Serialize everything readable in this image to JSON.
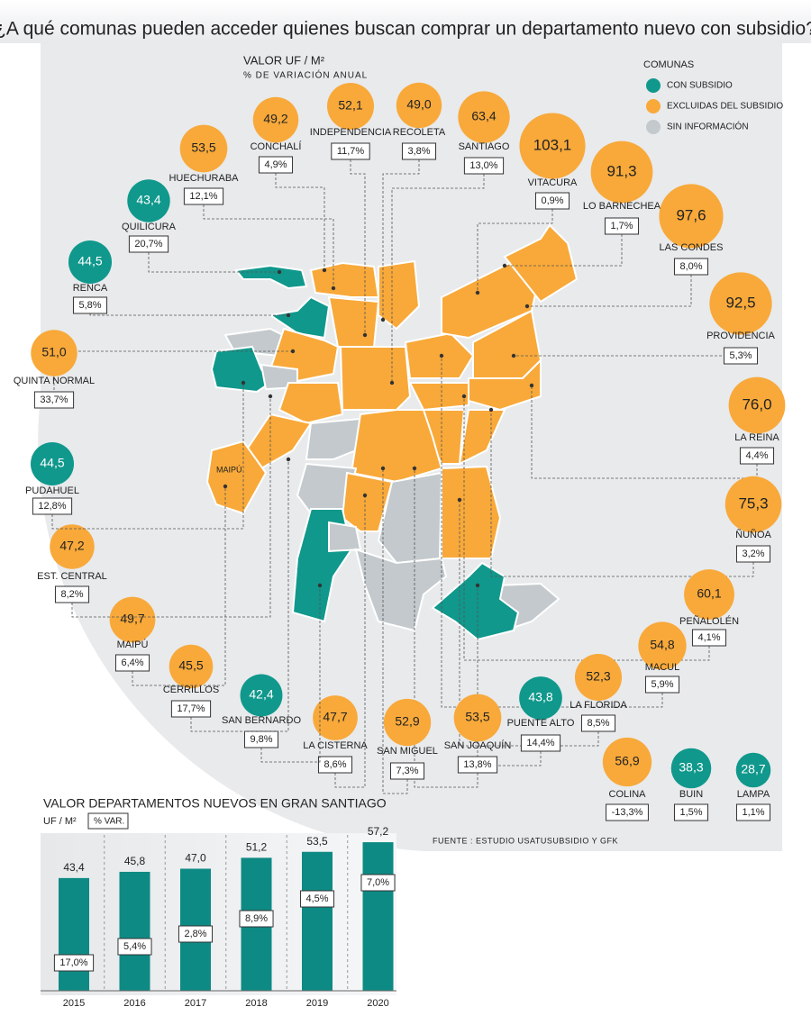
{
  "title": "¿A qué comunas pueden acceder quienes buscan comprar un departamento nuevo con subsidio?",
  "map": {
    "value_heading": "VALOR UF / M²",
    "variation_heading": "% DE VARIACIÓN ANUAL",
    "district_label": "MAIPÚ",
    "legend": {
      "title": "COMUNAS",
      "items": [
        {
          "name": "CON SUBSIDIO",
          "color": "#10988c"
        },
        {
          "name": "EXCLUIDAS DEL SUBSIDIO",
          "color": "#f8a93a"
        },
        {
          "name": "SIN INFORMACIÓN",
          "color": "#c3c9cd"
        }
      ]
    },
    "communes": [
      {
        "name": "CONCHALÍ",
        "value": 49.2,
        "value_label": "49,2",
        "variation": "4,9%",
        "group": 1
      },
      {
        "name": "INDEPENDENCIA",
        "value": 52.1,
        "value_label": "52,1",
        "variation": "11,7%",
        "group": 1
      },
      {
        "name": "RECOLETA",
        "value": 49.0,
        "value_label": "49,0",
        "variation": "3,8%",
        "group": 1
      },
      {
        "name": "SANTIAGO",
        "value": 63.4,
        "value_label": "63,4",
        "variation": "13,0%",
        "group": 1
      },
      {
        "name": "VITACURA",
        "value": 103.1,
        "value_label": "103,1",
        "variation": "0,9%",
        "group": 1
      },
      {
        "name": "LO BARNECHEA",
        "value": 91.3,
        "value_label": "91,3",
        "variation": "1,7%",
        "group": 1
      },
      {
        "name": "LAS CONDES",
        "value": 97.6,
        "value_label": "97,6",
        "variation": "8,0%",
        "group": 1
      },
      {
        "name": "PROVIDENCIA",
        "value": 92.5,
        "value_label": "92,5",
        "variation": "5,3%",
        "group": 1
      },
      {
        "name": "LA REINA",
        "value": 76.0,
        "value_label": "76,0",
        "variation": "4,4%",
        "group": 1
      },
      {
        "name": "ÑUÑOA",
        "value": 75.3,
        "value_label": "75,3",
        "variation": "3,2%",
        "group": 1
      },
      {
        "name": "PEÑALOLÉN",
        "value": 60.1,
        "value_label": "60,1",
        "variation": "4,1%",
        "group": 1
      },
      {
        "name": "MACUL",
        "value": 54.8,
        "value_label": "54,8",
        "variation": "5,9%",
        "group": 1
      },
      {
        "name": "LA FLORIDA",
        "value": 52.3,
        "value_label": "52,3",
        "variation": "8,5%",
        "group": 1
      },
      {
        "name": "PUENTE ALTO",
        "value": 43.8,
        "value_label": "43,8",
        "variation": "14,4%",
        "group": 0
      },
      {
        "name": "SAN JOAQUÍN",
        "value": 53.5,
        "value_label": "53,5",
        "variation": "13,8%",
        "group": 1
      },
      {
        "name": "SAN MIGUEL",
        "value": 52.9,
        "value_label": "52,9",
        "variation": "7,3%",
        "group": 1
      },
      {
        "name": "LA CISTERNA",
        "value": 47.7,
        "value_label": "47,7",
        "variation": "8,6%",
        "group": 1
      },
      {
        "name": "SAN BERNARDO",
        "value": 42.4,
        "value_label": "42,4",
        "variation": "9,8%",
        "group": 0
      },
      {
        "name": "CERRILLOS",
        "value": 45.5,
        "value_label": "45,5",
        "variation": "17,7%",
        "group": 1
      },
      {
        "name": "MAIPÚ",
        "value": 49.7,
        "value_label": "49,7",
        "variation": "6,4%",
        "group": 1
      },
      {
        "name": "EST. CENTRAL",
        "value": 47.2,
        "value_label": "47,2",
        "variation": "8,2%",
        "group": 1
      },
      {
        "name": "PUDAHUEL",
        "value": 44.5,
        "value_label": "44,5",
        "variation": "12,8%",
        "group": 0
      },
      {
        "name": "QUINTA NORMAL",
        "value": 51.0,
        "value_label": "51,0",
        "variation": "33,7%",
        "group": 1
      },
      {
        "name": "RENCA",
        "value": 44.5,
        "value_label": "44,5",
        "variation": "5,8%",
        "group": 0
      },
      {
        "name": "QUILICURA",
        "value": 43.4,
        "value_label": "43,4",
        "variation": "20,7%",
        "group": 0
      },
      {
        "name": "HUECHURABA",
        "value": 53.5,
        "value_label": "53,5",
        "variation": "12,1%",
        "group": 1
      },
      {
        "name": "COLINA",
        "value": 56.9,
        "value_label": "56,9",
        "variation": "-13,3%",
        "group": 1
      },
      {
        "name": "BUIN",
        "value": 38.3,
        "value_label": "38,3",
        "variation": "1,5%",
        "group": 0
      },
      {
        "name": "LAMPA",
        "value": 28.7,
        "value_label": "28,7",
        "variation": "1,1%",
        "group": 0
      }
    ],
    "source": "FUENTE : ESTUDIO USATUSUBSIDIO Y GFK"
  },
  "chart_data": {
    "type": "bar",
    "title": "VALOR DEPARTAMENTOS NUEVOS EN GRAN SANTIAGO",
    "y_label": "UF / M²",
    "variation_label": "% VAR.",
    "categories": [
      "2015",
      "2016",
      "2017",
      "2018",
      "2019",
      "2020"
    ],
    "values": [
      43.4,
      45.8,
      47.0,
      51.2,
      53.5,
      57.2
    ],
    "value_labels": [
      "43,4",
      "45,8",
      "47,0",
      "51,2",
      "53,5",
      "57,2"
    ],
    "variations": [
      "17,0%",
      "5,4%",
      "2,8%",
      "8,9%",
      "4,5%",
      "7,0%"
    ],
    "color": "#0e8a84",
    "ylim": [
      0,
      60
    ]
  }
}
